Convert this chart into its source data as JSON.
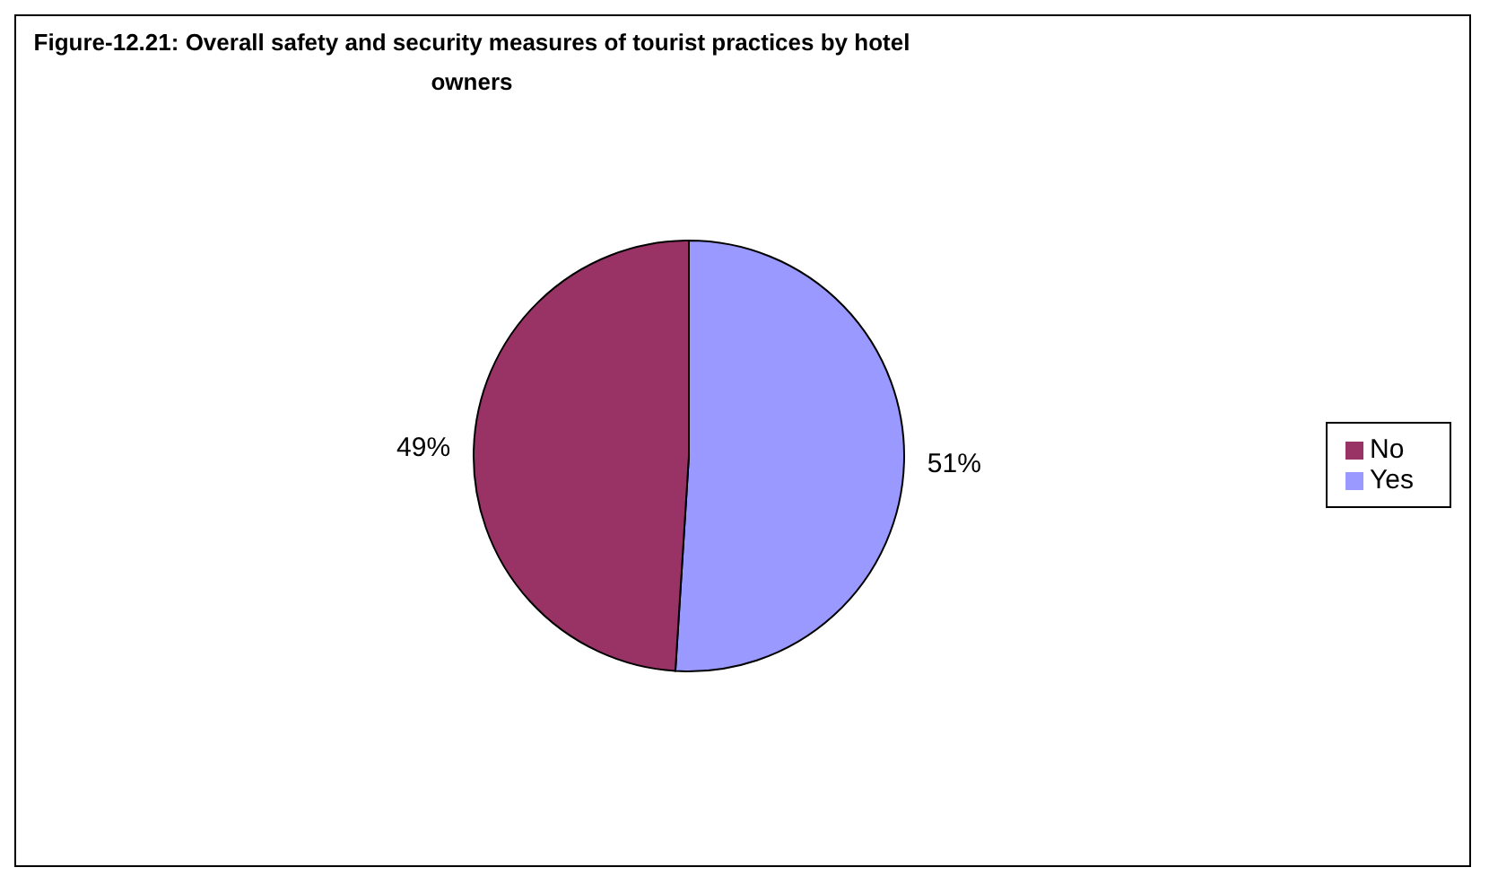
{
  "chart_data": {
    "type": "pie",
    "title": "Figure-12.21: Overall safety and security measures of tourist practices by hotel owners",
    "categories": [
      "Yes",
      "No"
    ],
    "values": [
      51,
      49
    ],
    "colors": [
      "#9999ff",
      "#993366"
    ],
    "value_labels": [
      "51%",
      "49%"
    ],
    "legend": "right"
  }
}
